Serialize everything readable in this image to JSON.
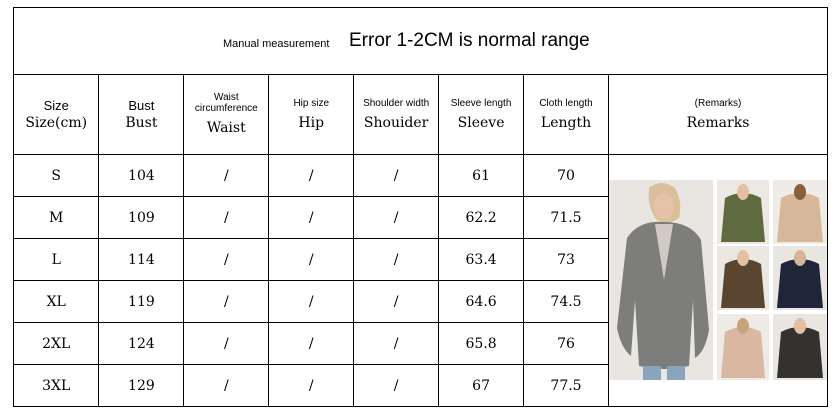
{
  "banner": {
    "small": "Manual measurement",
    "big": "Error 1-2CM is normal range"
  },
  "headers": [
    {
      "en": "Size",
      "main": "Size(cm)"
    },
    {
      "en": "Bust",
      "main": "Bust"
    },
    {
      "en": "Waist circumference",
      "main": "Waist"
    },
    {
      "en": "Hip size",
      "main": "Hip"
    },
    {
      "en": "Shoulder width",
      "main": "Shouider"
    },
    {
      "en": "Sleeve length",
      "main": "Sleeve"
    },
    {
      "en": "Cloth length",
      "main": "Length"
    },
    {
      "en": "(Remarks)",
      "main": "Remarks"
    }
  ],
  "rows": [
    {
      "size": "S",
      "bust": "104",
      "waist": "/",
      "hip": "/",
      "shoulder": "/",
      "sleeve": "61",
      "length": "70"
    },
    {
      "size": "M",
      "bust": "109",
      "waist": "/",
      "hip": "/",
      "shoulder": "/",
      "sleeve": "62.2",
      "length": "71.5"
    },
    {
      "size": "L",
      "bust": "114",
      "waist": "/",
      "hip": "/",
      "shoulder": "/",
      "sleeve": "63.4",
      "length": "73"
    },
    {
      "size": "XL",
      "bust": "119",
      "waist": "/",
      "hip": "/",
      "shoulder": "/",
      "sleeve": "64.6",
      "length": "74.5"
    },
    {
      "size": "2XL",
      "bust": "124",
      "waist": "/",
      "hip": "/",
      "shoulder": "/",
      "sleeve": "65.8",
      "length": "76"
    },
    {
      "size": "3XL",
      "bust": "129",
      "waist": "/",
      "hip": "/",
      "shoulder": "/",
      "sleeve": "67",
      "length": "77.5"
    }
  ],
  "photo": {
    "coat_colors": [
      "#7d7d7b",
      "#5f6b3e",
      "#d7b79a",
      "#5a4630",
      "#1f2639",
      "#d9b7a0",
      "#33322f"
    ]
  }
}
